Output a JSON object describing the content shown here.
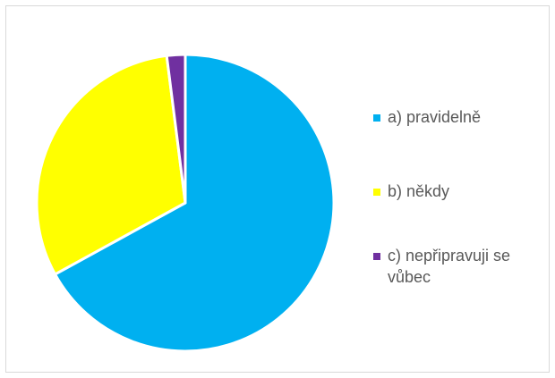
{
  "chart_data": {
    "type": "pie",
    "title": "",
    "categories": [
      "a) pravidelně",
      "b) někdy",
      "c) nepřipravuji se vůbec"
    ],
    "values": [
      67,
      31,
      2
    ],
    "colors": [
      "#00b0f0",
      "#ffff00",
      "#7030a0"
    ],
    "legend_position": "right"
  }
}
